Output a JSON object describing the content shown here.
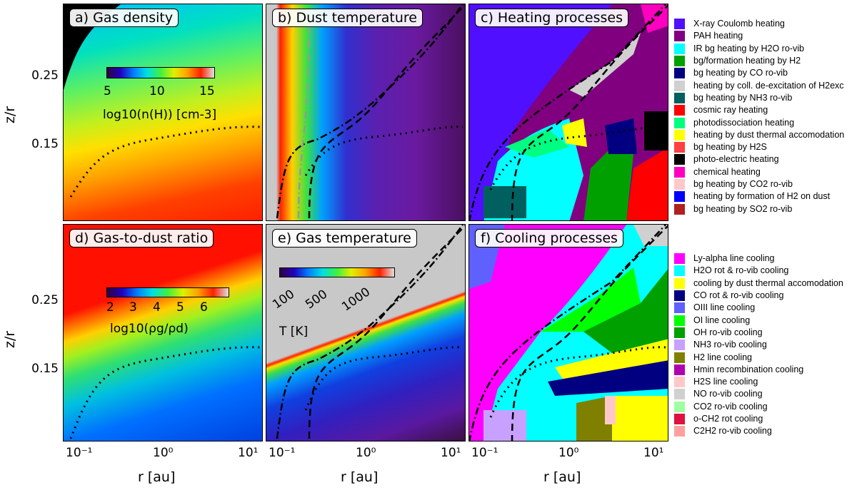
{
  "chart_data": [
    {
      "type": "heatmap",
      "panel": "a",
      "title": "a) Gas density",
      "colorbar": {
        "label": "log10(n(H)) [cm-3]",
        "ticks": [
          "5",
          "10",
          "15"
        ],
        "range": [
          4,
          16
        ]
      },
      "xlabel": "",
      "ylabel": "z/r"
    },
    {
      "type": "heatmap",
      "panel": "b",
      "title": "b) Dust temperature",
      "xlabel": "",
      "ylabel": ""
    },
    {
      "type": "heatmap",
      "panel": "c",
      "title": "c) Heating processes",
      "xlabel": "",
      "ylabel": ""
    },
    {
      "type": "heatmap",
      "panel": "d",
      "title": "d) Gas-to-dust ratio",
      "colorbar": {
        "label": "log10(ρg/ρd)",
        "ticks": [
          "2",
          "3",
          "4",
          "5",
          "6"
        ],
        "range": [
          1.5,
          6.5
        ]
      },
      "xlabel": "r [au]",
      "ylabel": "z/r"
    },
    {
      "type": "heatmap",
      "panel": "e",
      "title": "e) Gas temperature",
      "colorbar": {
        "label": "T [K]",
        "ticks": [
          "100",
          "500",
          "1000"
        ]
      },
      "xlabel": "r [au]",
      "ylabel": ""
    },
    {
      "type": "heatmap",
      "panel": "f",
      "title": "f) Cooling processes",
      "xlabel": "r [au]",
      "ylabel": ""
    }
  ],
  "axes": {
    "ylabel": "z/r",
    "xlabel": "r [au]",
    "yticks": [
      "0.25",
      "0.15"
    ],
    "xticks": [
      "10⁻¹",
      "10⁰",
      "10¹"
    ],
    "xscale": "log",
    "xrange": [
      0.05,
      12
    ],
    "yrange": [
      0.1,
      0.3
    ]
  },
  "heating_legend": [
    {
      "label": "X-ray Coulomb heating",
      "color": "#5010ff"
    },
    {
      "label": "PAH heating",
      "color": "#800080"
    },
    {
      "label": "IR bg heating by H2O ro-vib",
      "color": "#00ffff"
    },
    {
      "label": "bg/formation heating by H2",
      "color": "#00a000"
    },
    {
      "label": "bg heating by CO ro-vib",
      "color": "#000080"
    },
    {
      "label": "heating by coll. de-excitation of H2exc",
      "color": "#d0d0d0"
    },
    {
      "label": "bg heating by NH3 ro-vib",
      "color": "#006060"
    },
    {
      "label": "cosmic ray heating",
      "color": "#ff0000"
    },
    {
      "label": "photodissociation heating",
      "color": "#00ff80"
    },
    {
      "label": "heating by dust thermal accomodation",
      "color": "#ffff00"
    },
    {
      "label": "bg heating by H2S",
      "color": "#ff4040"
    },
    {
      "label": "photo-electric heating",
      "color": "#000000"
    },
    {
      "label": "chemical heating",
      "color": "#ff00c0"
    },
    {
      "label": "bg heating by CO2 ro-vib",
      "color": "#ffc8c8"
    },
    {
      "label": "heating by formation of H2 on dust",
      "color": "#0000ff"
    },
    {
      "label": "bg heating by SO2 ro-vib",
      "color": "#b02020"
    }
  ],
  "cooling_legend": [
    {
      "label": "Ly-alpha line cooling",
      "color": "#ff00ff"
    },
    {
      "label": "H2O rot & ro-vib cooling",
      "color": "#00ffff"
    },
    {
      "label": "cooling by dust thermal accomodation",
      "color": "#ffff00"
    },
    {
      "label": "CO rot & ro-vib cooling",
      "color": "#000080"
    },
    {
      "label": "OIII line cooling",
      "color": "#6060ff"
    },
    {
      "label": "OI line cooling",
      "color": "#00ff00"
    },
    {
      "label": "OH ro-vib cooling",
      "color": "#00a000"
    },
    {
      "label": "NH3 ro-vib cooling",
      "color": "#c8a0ff"
    },
    {
      "label": "H2 line cooling",
      "color": "#808000"
    },
    {
      "label": "Hmin recombination cooling",
      "color": "#b000b0"
    },
    {
      "label": "H2S line cooling",
      "color": "#ffc8c8"
    },
    {
      "label": "NO ro-vib cooling",
      "color": "#d0d0d0"
    },
    {
      "label": "CO2 ro-vib cooling",
      "color": "#a0ffa0"
    },
    {
      "label": "o-CH2 rot cooling",
      "color": "#e01040"
    },
    {
      "label": "C2H2 ro-vib cooling",
      "color": "#ffa0a0"
    }
  ]
}
